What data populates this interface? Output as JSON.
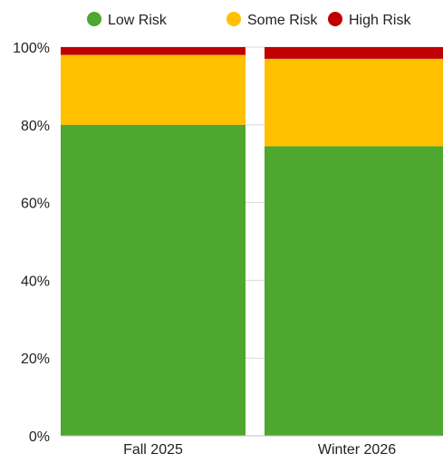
{
  "chart_data": {
    "type": "bar",
    "stacked": true,
    "percent": true,
    "categories": [
      "Fall 2025",
      "Winter 2026"
    ],
    "series": [
      {
        "name": "Low Risk",
        "color": "#4ea72e",
        "values": [
          80,
          74.5
        ]
      },
      {
        "name": "Some Risk",
        "color": "#ffc000",
        "values": [
          18,
          22.5
        ]
      },
      {
        "name": "High Risk",
        "color": "#c00000",
        "values": [
          2,
          3
        ]
      }
    ],
    "yticks": [
      "0%",
      "20%",
      "40%",
      "60%",
      "80%",
      "100%"
    ],
    "ylim": [
      0,
      100
    ],
    "title": "",
    "xlabel": "",
    "ylabel": "",
    "legend_position": "top",
    "grid": true,
    "grid_color": "#d9d9d9"
  }
}
